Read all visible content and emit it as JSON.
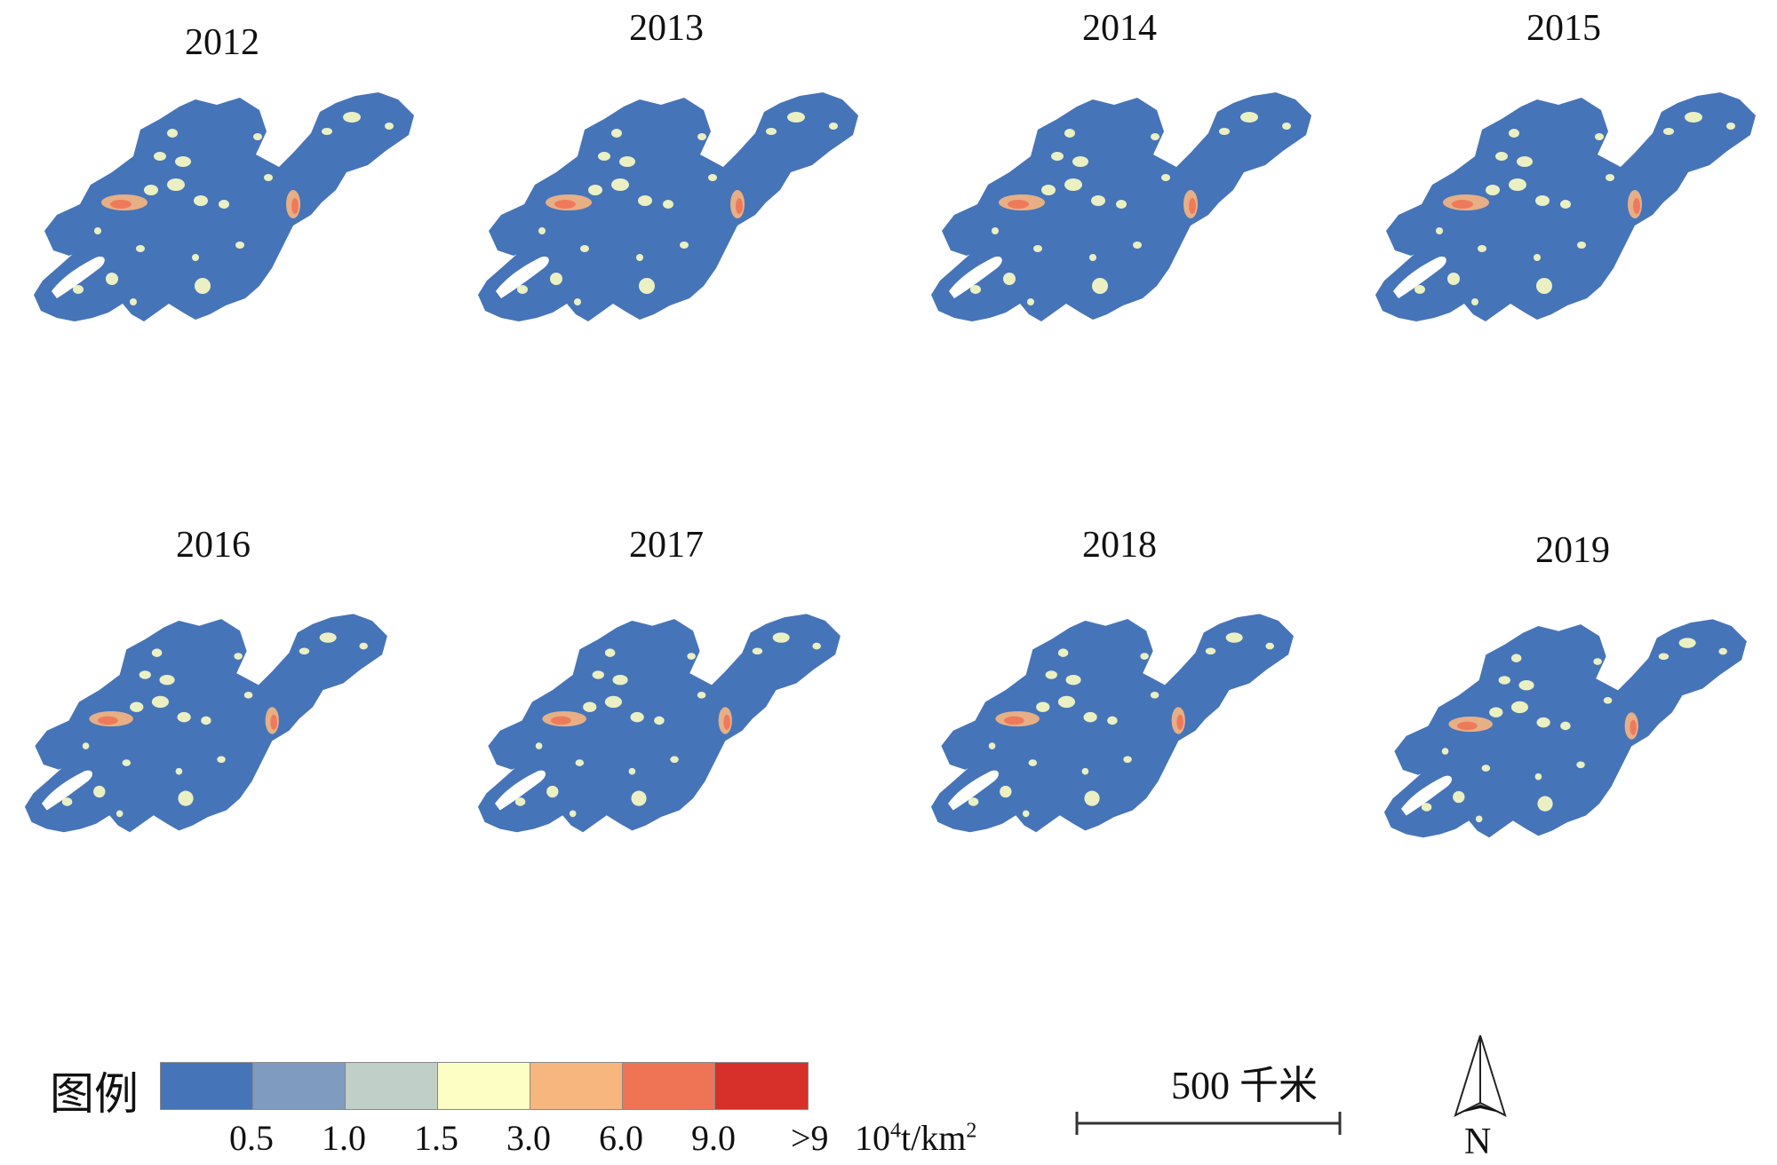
{
  "maps": [
    {
      "year": "2012"
    },
    {
      "year": "2013"
    },
    {
      "year": "2014"
    },
    {
      "year": "2015"
    },
    {
      "year": "2016"
    },
    {
      "year": "2017"
    },
    {
      "year": "2018"
    },
    {
      "year": "2019"
    }
  ],
  "legend": {
    "title": "图例",
    "classes": [
      {
        "color": "#4674b8"
      },
      {
        "color": "#7f9cc0"
      },
      {
        "color": "#c0cfc7"
      },
      {
        "color": "#fdfec3"
      },
      {
        "color": "#f8b67f"
      },
      {
        "color": "#ef7456"
      },
      {
        "color": "#d7302a"
      }
    ],
    "ticks": [
      "0.5",
      "1.0",
      "1.5",
      "3.0",
      "6.0",
      "9.0",
      ">9"
    ],
    "unit_base": "10",
    "unit_exp": "4",
    "unit_rest": "t/km",
    "unit_exp2": "2"
  },
  "scale": {
    "label": "500 千米"
  },
  "north": {
    "label": "N"
  },
  "colors": {
    "base": "#4674b8",
    "low": "#fdfec3",
    "mid": "#f8b67f",
    "high": "#ef7456",
    "top": "#d7302a"
  }
}
